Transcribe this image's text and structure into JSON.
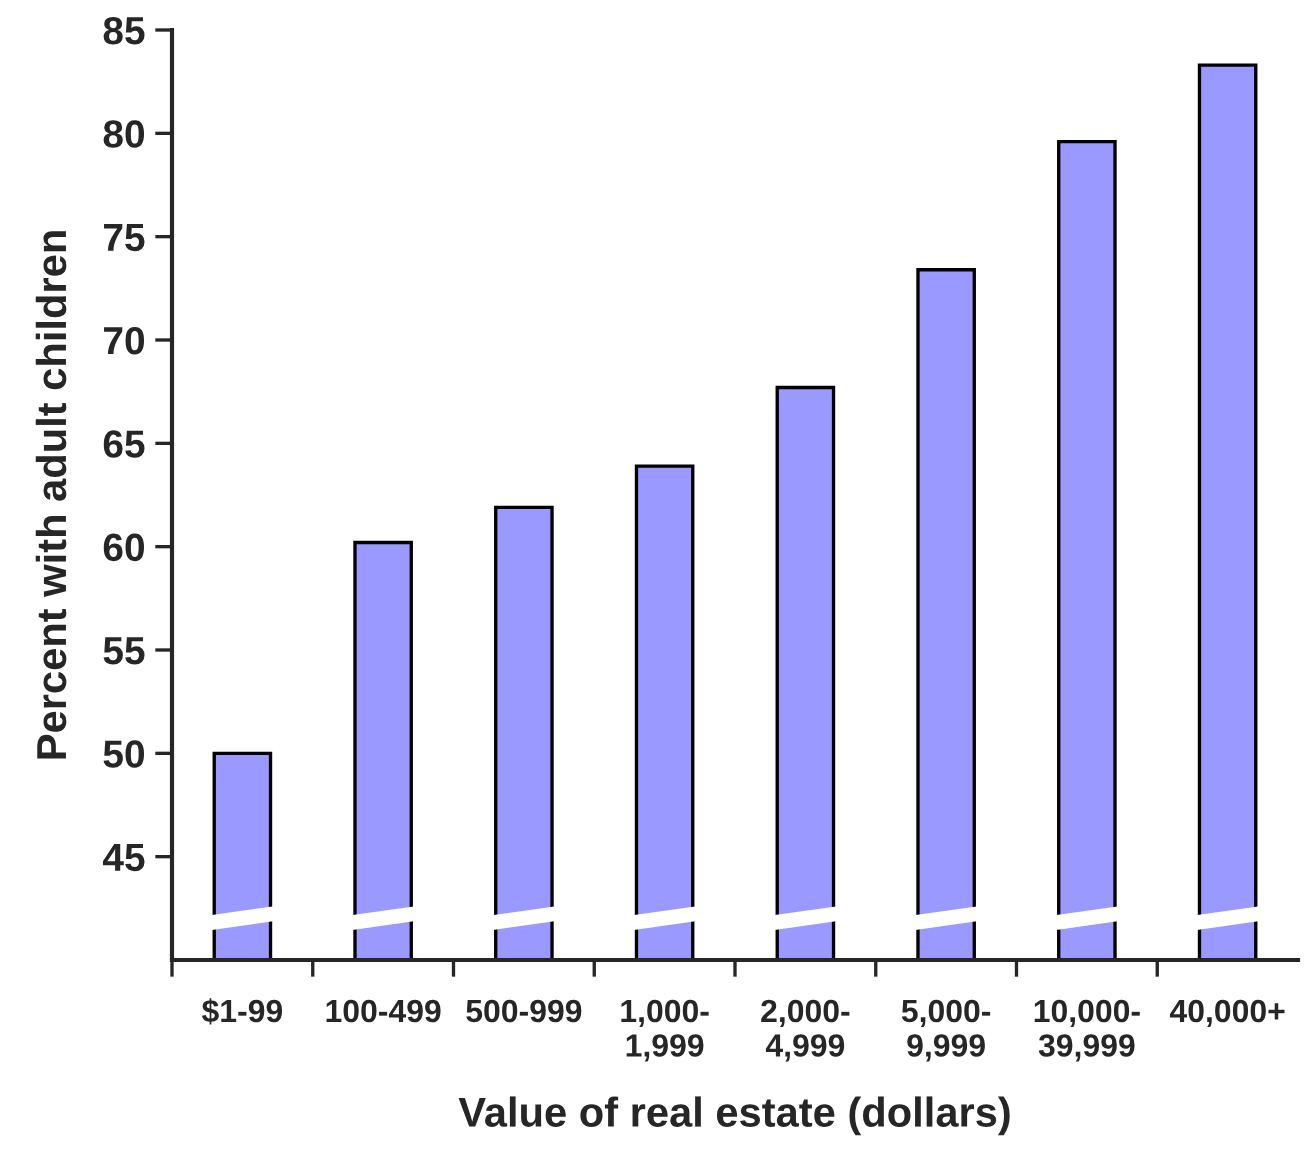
{
  "chart_data": {
    "type": "bar",
    "xlabel": "Value of real estate (dollars)",
    "ylabel": "Percent with adult children",
    "categories": [
      "$1-99",
      "100-499",
      "500-999",
      "1,000-\n1,999",
      "2,000-\n4,999",
      "5,000-\n9,999",
      "10,000-\n39,999",
      "40,000+"
    ],
    "values": [
      50.0,
      60.2,
      61.9,
      63.9,
      67.7,
      73.4,
      79.6,
      83.3
    ],
    "color": "#9999ff",
    "ylim": [
      40,
      85
    ],
    "yticks": [
      45,
      50,
      55,
      60,
      65,
      70,
      75,
      80,
      85
    ],
    "grid": false
  }
}
